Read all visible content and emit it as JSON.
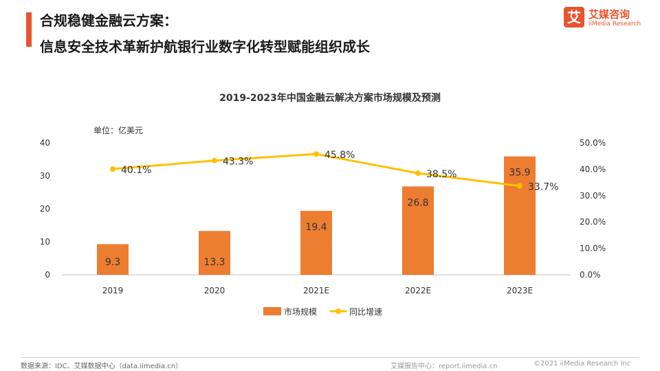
{
  "header": {
    "title_line1": "合规稳健金融云方案：",
    "title_line2": "信息安全技术革新护航银行业数字化转型赋能组织成长"
  },
  "logo": {
    "mark": "艾",
    "name_cn": "艾媒咨询",
    "name_en": "iiMedia Research"
  },
  "colors": {
    "accent": "#e8542f",
    "bar": "#ed7d31",
    "line": "#ffc000"
  },
  "chart_data": {
    "type": "bar",
    "title": "2019-2023年中国金融云解决方案市场规模及预测",
    "unit_label": "单位：亿美元",
    "categories": [
      "2019",
      "2020",
      "2021E",
      "2022E",
      "2023E"
    ],
    "series": [
      {
        "name": "市场规模",
        "type": "bar",
        "axis": "left",
        "values": [
          9.3,
          13.3,
          19.4,
          26.8,
          35.9
        ],
        "value_labels": [
          "9.3",
          "13.3",
          "19.4",
          "26.8",
          "35.9"
        ]
      },
      {
        "name": "同比增速",
        "type": "line",
        "axis": "right",
        "values": [
          40.1,
          43.3,
          45.8,
          38.5,
          33.7
        ],
        "value_labels": [
          "40.1%",
          "43.3%",
          "45.8%",
          "38.5%",
          "33.7%"
        ]
      }
    ],
    "ylim": [
      0,
      40
    ],
    "y_ticks": [
      "0",
      "10",
      "20",
      "30",
      "40"
    ],
    "y2lim": [
      0,
      50
    ],
    "y2_ticks": [
      "0.0%",
      "10.0%",
      "20.0%",
      "30.0%",
      "40.0%",
      "50.0%"
    ],
    "legend_position": "bottom",
    "grid": false
  },
  "footer": {
    "source": "数据来源：IDC、艾媒数据中心（data.iimedia.cn）",
    "report": "艾媒报告中心：report.iimedia.cn",
    "copyright": "©2021  iiMedia Research  Inc"
  }
}
